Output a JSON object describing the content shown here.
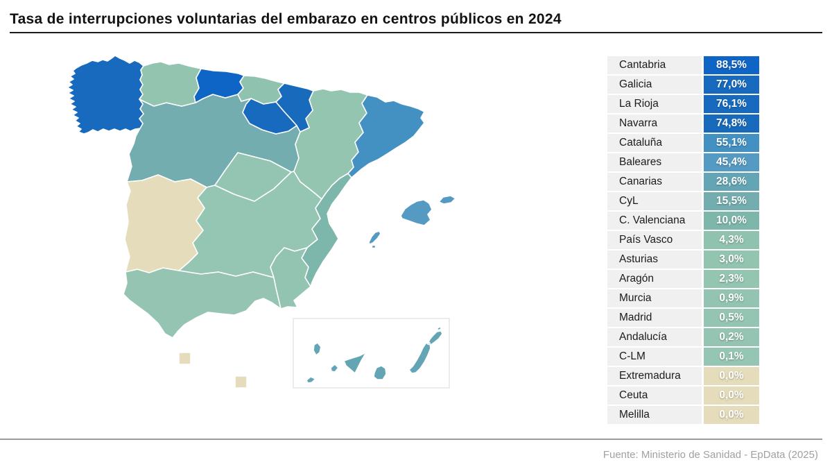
{
  "title": "Tasa de interrupciones voluntarias del embarazo en centros públicos en 2024",
  "source": "Fuente: Ministerio de Sanidad - EpData (2025)",
  "chart_data": {
    "type": "choropleth-map",
    "title": "Tasa de interrupciones voluntarias del embarazo en centros públicos en 2024",
    "unit": "%",
    "regions": [
      {
        "key": "cantabria",
        "label": "Cantabria",
        "value": "88,5%",
        "value_num": 88.5,
        "color": "#0F65C5"
      },
      {
        "key": "galicia",
        "label": "Galicia",
        "value": "77,0%",
        "value_num": 77.0,
        "color": "#176ABE"
      },
      {
        "key": "la_rioja",
        "label": "La Rioja",
        "value": "76,1%",
        "value_num": 76.1,
        "color": "#176ABE"
      },
      {
        "key": "navarra",
        "label": "Navarra",
        "value": "74,8%",
        "value_num": 74.8,
        "color": "#186ABD"
      },
      {
        "key": "cataluna",
        "label": "Cataluña",
        "value": "55,1%",
        "value_num": 55.1,
        "color": "#4390C2"
      },
      {
        "key": "baleares",
        "label": "Baleares",
        "value": "45,4%",
        "value_num": 45.4,
        "color": "#549AC3"
      },
      {
        "key": "canarias",
        "label": "Canarias",
        "value": "28,6%",
        "value_num": 28.6,
        "color": "#63A5B5"
      },
      {
        "key": "cyl",
        "label": "CyL",
        "value": "15,5%",
        "value_num": 15.5,
        "color": "#73ADB0"
      },
      {
        "key": "c_valenciana",
        "label": "C. Valenciana",
        "value": "10,0%",
        "value_num": 10.0,
        "color": "#7DB6AB"
      },
      {
        "key": "pais_vasco",
        "label": "País Vasco",
        "value": "4,3%",
        "value_num": 4.3,
        "color": "#90C3AF"
      },
      {
        "key": "asturias",
        "label": "Asturias",
        "value": "3,0%",
        "value_num": 3.0,
        "color": "#92C4B0"
      },
      {
        "key": "aragon",
        "label": "Aragón",
        "value": "2,3%",
        "value_num": 2.3,
        "color": "#93C5B1"
      },
      {
        "key": "murcia",
        "label": "Murcia",
        "value": "0,9%",
        "value_num": 0.9,
        "color": "#93C4B1"
      },
      {
        "key": "madrid",
        "label": "Madrid",
        "value": "0,5%",
        "value_num": 0.5,
        "color": "#94C5B2"
      },
      {
        "key": "andalucia",
        "label": "Andalucía",
        "value": "0,2%",
        "value_num": 0.2,
        "color": "#95C5B2"
      },
      {
        "key": "clm",
        "label": "C-LM",
        "value": "0,1%",
        "value_num": 0.1,
        "color": "#95C6B3"
      },
      {
        "key": "extremadura",
        "label": "Extremadura",
        "value": "0,0%",
        "value_num": 0.0,
        "color": "#E4DCBA"
      },
      {
        "key": "ceuta",
        "label": "Ceuta",
        "value": "0,0%",
        "value_num": 0.0,
        "color": "#E4DCBA"
      },
      {
        "key": "melilla",
        "label": "Melilla",
        "value": "0,0%",
        "value_num": 0.0,
        "color": "#E4DCBA"
      }
    ]
  }
}
